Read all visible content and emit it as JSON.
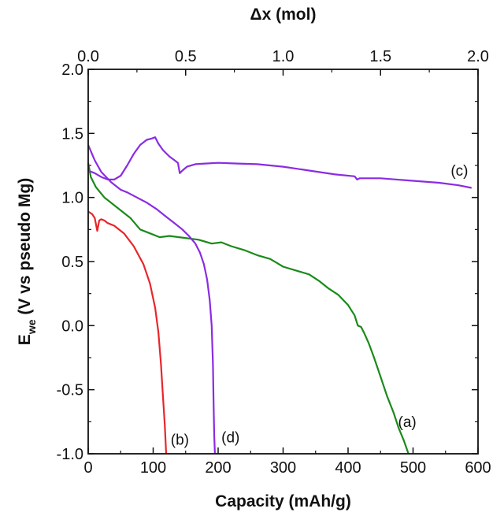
{
  "chart_data": {
    "type": "line",
    "xlabel": "Capacity (mAh/g)",
    "x2label": "Δx (mol)",
    "ylabel_main": "E",
    "ylabel_sub": "we",
    "ylabel_rest": " (V vs pseudo Mg)",
    "xlim": [
      0,
      600
    ],
    "ylim": [
      -1.0,
      2.0
    ],
    "x2lim": [
      0,
      2.0
    ],
    "xticks": [
      0,
      100,
      200,
      300,
      400,
      500,
      600
    ],
    "xtick_labels": [
      "0",
      "100",
      "200",
      "300",
      "400",
      "500",
      "600"
    ],
    "x2ticks": [
      0.0,
      0.5,
      1.0,
      1.5,
      2.0
    ],
    "x2tick_labels": [
      "0.0",
      "0.5",
      "1.0",
      "1.5",
      "2.0"
    ],
    "yticks": [
      -1.0,
      -0.5,
      0.0,
      0.5,
      1.0,
      1.5,
      2.0
    ],
    "ytick_labels": [
      "-1.0",
      "-0.5",
      "0.0",
      "0.5",
      "1.0",
      "1.5",
      "2.0"
    ],
    "grid": false,
    "series": [
      {
        "name": "(a)",
        "color": "#1a8a1a",
        "label_at": [
          477,
          -0.79
        ],
        "points": [
          [
            0,
            1.27
          ],
          [
            4,
            1.16
          ],
          [
            12,
            1.08
          ],
          [
            25,
            1.0
          ],
          [
            45,
            0.92
          ],
          [
            65,
            0.84
          ],
          [
            80,
            0.75
          ],
          [
            95,
            0.72
          ],
          [
            110,
            0.69
          ],
          [
            125,
            0.7
          ],
          [
            140,
            0.69
          ],
          [
            155,
            0.68
          ],
          [
            170,
            0.67
          ],
          [
            190,
            0.64
          ],
          [
            205,
            0.65
          ],
          [
            220,
            0.62
          ],
          [
            240,
            0.59
          ],
          [
            260,
            0.55
          ],
          [
            280,
            0.52
          ],
          [
            290,
            0.49
          ],
          [
            300,
            0.46
          ],
          [
            320,
            0.43
          ],
          [
            340,
            0.4
          ],
          [
            355,
            0.35
          ],
          [
            370,
            0.29
          ],
          [
            385,
            0.24
          ],
          [
            400,
            0.16
          ],
          [
            410,
            0.08
          ],
          [
            415,
            0.0
          ],
          [
            420,
            -0.01
          ],
          [
            425,
            -0.06
          ],
          [
            432,
            -0.14
          ],
          [
            440,
            -0.25
          ],
          [
            450,
            -0.4
          ],
          [
            460,
            -0.55
          ],
          [
            470,
            -0.68
          ],
          [
            478,
            -0.8
          ],
          [
            486,
            -0.9
          ],
          [
            493,
            -1.0
          ]
        ]
      },
      {
        "name": "(b)",
        "color": "#e8262a",
        "label_at": [
          127,
          -0.93
        ],
        "points": [
          [
            0,
            0.89
          ],
          [
            6,
            0.87
          ],
          [
            10,
            0.84
          ],
          [
            14,
            0.74
          ],
          [
            17,
            0.82
          ],
          [
            20,
            0.83
          ],
          [
            25,
            0.82
          ],
          [
            30,
            0.8
          ],
          [
            40,
            0.78
          ],
          [
            55,
            0.72
          ],
          [
            70,
            0.62
          ],
          [
            85,
            0.48
          ],
          [
            95,
            0.33
          ],
          [
            103,
            0.14
          ],
          [
            108,
            -0.05
          ],
          [
            112,
            -0.3
          ],
          [
            115,
            -0.55
          ],
          [
            118,
            -0.78
          ],
          [
            120,
            -1.0
          ]
        ]
      },
      {
        "name": "(c)",
        "color": "#8b2be2",
        "label_at": [
          558,
          1.17
        ],
        "points": [
          [
            0,
            1.21
          ],
          [
            10,
            1.19
          ],
          [
            20,
            1.16
          ],
          [
            30,
            1.14
          ],
          [
            40,
            1.14
          ],
          [
            50,
            1.17
          ],
          [
            60,
            1.25
          ],
          [
            70,
            1.34
          ],
          [
            80,
            1.41
          ],
          [
            90,
            1.45
          ],
          [
            98,
            1.46
          ],
          [
            103,
            1.47
          ],
          [
            108,
            1.42
          ],
          [
            115,
            1.37
          ],
          [
            125,
            1.32
          ],
          [
            133,
            1.29
          ],
          [
            138,
            1.27
          ],
          [
            141,
            1.19
          ],
          [
            145,
            1.21
          ],
          [
            152,
            1.24
          ],
          [
            165,
            1.26
          ],
          [
            180,
            1.265
          ],
          [
            200,
            1.27
          ],
          [
            230,
            1.265
          ],
          [
            260,
            1.26
          ],
          [
            300,
            1.24
          ],
          [
            340,
            1.21
          ],
          [
            380,
            1.18
          ],
          [
            410,
            1.165
          ],
          [
            414,
            1.14
          ],
          [
            418,
            1.15
          ],
          [
            450,
            1.15
          ],
          [
            500,
            1.13
          ],
          [
            540,
            1.115
          ],
          [
            570,
            1.095
          ],
          [
            590,
            1.075
          ]
        ]
      },
      {
        "name": "(d)",
        "color": "#8b2be2",
        "label_at": [
          205,
          -0.91
        ],
        "points": [
          [
            0,
            1.41
          ],
          [
            5,
            1.35
          ],
          [
            10,
            1.29
          ],
          [
            20,
            1.2
          ],
          [
            35,
            1.12
          ],
          [
            50,
            1.06
          ],
          [
            60,
            1.04
          ],
          [
            75,
            1.0
          ],
          [
            90,
            0.96
          ],
          [
            105,
            0.91
          ],
          [
            120,
            0.85
          ],
          [
            135,
            0.79
          ],
          [
            145,
            0.75
          ],
          [
            155,
            0.7
          ],
          [
            165,
            0.64
          ],
          [
            172,
            0.57
          ],
          [
            178,
            0.48
          ],
          [
            183,
            0.36
          ],
          [
            187,
            0.2
          ],
          [
            190,
            0.0
          ],
          [
            192,
            -0.3
          ],
          [
            193,
            -0.6
          ],
          [
            194,
            -0.85
          ],
          [
            195,
            -1.0
          ]
        ]
      }
    ]
  }
}
